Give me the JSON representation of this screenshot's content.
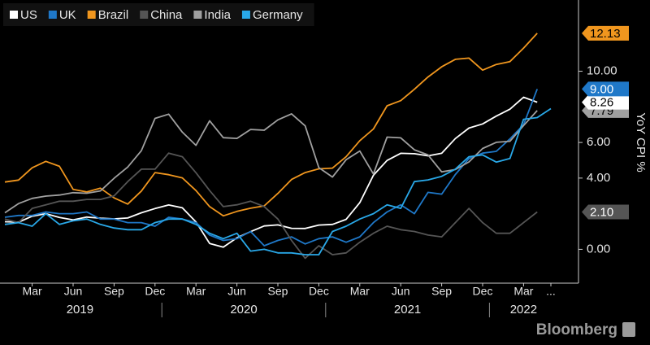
{
  "chart_data": {
    "type": "line",
    "y_label": "YoY CPI %",
    "source": "Bloomberg",
    "categories": [
      null,
      null,
      "Mar",
      null,
      null,
      "Jun",
      null,
      null,
      "Sep",
      null,
      null,
      "Dec",
      null,
      null,
      "Mar",
      null,
      null,
      "Jun",
      null,
      null,
      "Sep",
      null,
      null,
      "Dec",
      null,
      null,
      "Mar",
      null,
      null,
      "Jun",
      null,
      null,
      "Sep",
      null,
      null,
      "Dec",
      null,
      null,
      "Mar",
      null,
      "..."
    ],
    "years": [
      "2019",
      "2020",
      "2021",
      "2022"
    ],
    "ylim": [
      -1.9,
      14
    ],
    "yticks": [
      {
        "value": 0,
        "label": "0.00"
      },
      {
        "value": 4,
        "label": "4.00"
      },
      {
        "value": 6,
        "label": "6.00"
      },
      {
        "value": 10,
        "label": "10.00"
      }
    ],
    "series": [
      {
        "name": "US",
        "color": "#ffffff",
        "end_label": "8.26",
        "label_text_color": "#000000",
        "values": [
          1.55,
          1.52,
          1.86,
          2.0,
          1.79,
          1.65,
          1.81,
          1.75,
          1.71,
          1.76,
          2.05,
          2.29,
          2.49,
          2.33,
          1.54,
          0.33,
          0.12,
          0.65,
          0.99,
          1.31,
          1.37,
          1.18,
          1.17,
          1.36,
          1.4,
          1.68,
          2.62,
          4.16,
          4.99,
          5.39,
          5.37,
          5.25,
          5.39,
          6.22,
          6.81,
          7.04,
          7.48,
          7.87,
          8.54,
          8.26,
          null
        ]
      },
      {
        "name": "UK",
        "color": "#1f78c8",
        "end_label": "9.00",
        "label_text_color": "#ffffff",
        "values": [
          1.8,
          1.9,
          1.9,
          2.1,
          2.0,
          2.0,
          2.1,
          1.7,
          1.7,
          1.5,
          1.5,
          1.3,
          1.8,
          1.7,
          1.5,
          0.8,
          0.5,
          0.6,
          1.0,
          0.2,
          0.5,
          0.7,
          0.3,
          0.6,
          0.7,
          0.4,
          0.7,
          1.5,
          2.1,
          2.5,
          2.0,
          3.2,
          3.1,
          4.2,
          5.1,
          5.4,
          5.5,
          6.2,
          7.0,
          9.0,
          null
        ]
      },
      {
        "name": "Brazil",
        "color": "#f0961e",
        "end_label": "12.13",
        "label_text_color": "#000000",
        "values": [
          3.78,
          3.89,
          4.58,
          4.94,
          4.66,
          3.37,
          3.22,
          3.43,
          2.89,
          2.54,
          3.27,
          4.31,
          4.19,
          4.01,
          3.3,
          2.4,
          1.88,
          2.13,
          2.31,
          2.44,
          3.14,
          3.92,
          4.31,
          4.52,
          4.56,
          5.2,
          6.1,
          6.76,
          8.06,
          8.35,
          8.99,
          9.68,
          10.25,
          10.67,
          10.74,
          10.06,
          10.38,
          10.54,
          11.3,
          12.13,
          null
        ]
      },
      {
        "name": "China",
        "color": "#555555",
        "end_label": "2.10",
        "label_text_color": "#ffffff",
        "values": [
          1.7,
          1.5,
          2.3,
          2.5,
          2.7,
          2.7,
          2.8,
          2.8,
          3.0,
          3.8,
          4.5,
          4.5,
          5.4,
          5.2,
          4.3,
          3.3,
          2.4,
          2.5,
          2.7,
          2.4,
          1.7,
          0.5,
          -0.5,
          0.2,
          -0.3,
          -0.2,
          0.4,
          0.9,
          1.3,
          1.1,
          1.0,
          0.8,
          0.7,
          1.5,
          2.3,
          1.5,
          0.9,
          0.9,
          1.5,
          2.1,
          null
        ]
      },
      {
        "name": "India",
        "color": "#a0a0a0",
        "end_label": "7.79",
        "label_text_color": "#000000",
        "values": [
          2.05,
          2.57,
          2.86,
          2.99,
          3.05,
          3.18,
          3.15,
          3.28,
          3.99,
          4.62,
          5.54,
          7.35,
          7.59,
          6.58,
          5.84,
          7.22,
          6.27,
          6.23,
          6.73,
          6.69,
          7.27,
          7.61,
          6.93,
          4.59,
          4.06,
          5.03,
          5.52,
          4.23,
          6.3,
          6.26,
          5.59,
          5.3,
          4.35,
          4.48,
          4.91,
          5.66,
          6.01,
          6.07,
          6.95,
          7.79,
          null
        ]
      },
      {
        "name": "Germany",
        "color": "#29a8e8",
        "values": [
          1.4,
          1.5,
          1.3,
          2.0,
          1.4,
          1.6,
          1.7,
          1.4,
          1.2,
          1.1,
          1.1,
          1.5,
          1.7,
          1.7,
          1.4,
          0.9,
          0.6,
          0.9,
          -0.1,
          0.0,
          -0.2,
          -0.2,
          -0.3,
          -0.3,
          1.0,
          1.3,
          1.7,
          2.0,
          2.5,
          2.3,
          3.8,
          3.9,
          4.1,
          4.5,
          5.2,
          5.3,
          4.9,
          5.1,
          7.3,
          7.4,
          7.9
        ]
      }
    ]
  }
}
